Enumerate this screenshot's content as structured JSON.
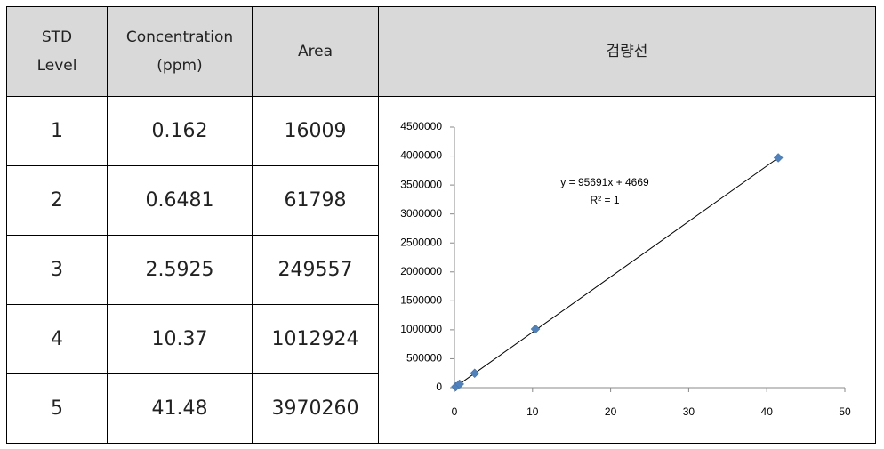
{
  "table": {
    "headers": [
      "STD\nLevel",
      "Concentration\n(ppm)",
      "Area",
      "검량선"
    ],
    "rows": [
      [
        1,
        0.162,
        16009
      ],
      [
        2,
        0.6481,
        61798
      ],
      [
        3,
        2.5925,
        249557
      ],
      [
        4,
        10.37,
        1012924
      ],
      [
        5,
        41.48,
        3970260
      ]
    ]
  },
  "chart": {
    "type": "scatter",
    "color": "#4f81bd",
    "equation": "y = 95691x + 4669",
    "r_squared": "R² = 1",
    "xlim": [
      0,
      50
    ],
    "xticks": [
      0,
      10,
      20,
      30,
      40,
      50
    ],
    "ylim": [
      0,
      4500000
    ],
    "yticks": [
      0,
      500000,
      1000000,
      1500000,
      2000000,
      2500000,
      3000000,
      3500000,
      4000000,
      4500000
    ]
  }
}
